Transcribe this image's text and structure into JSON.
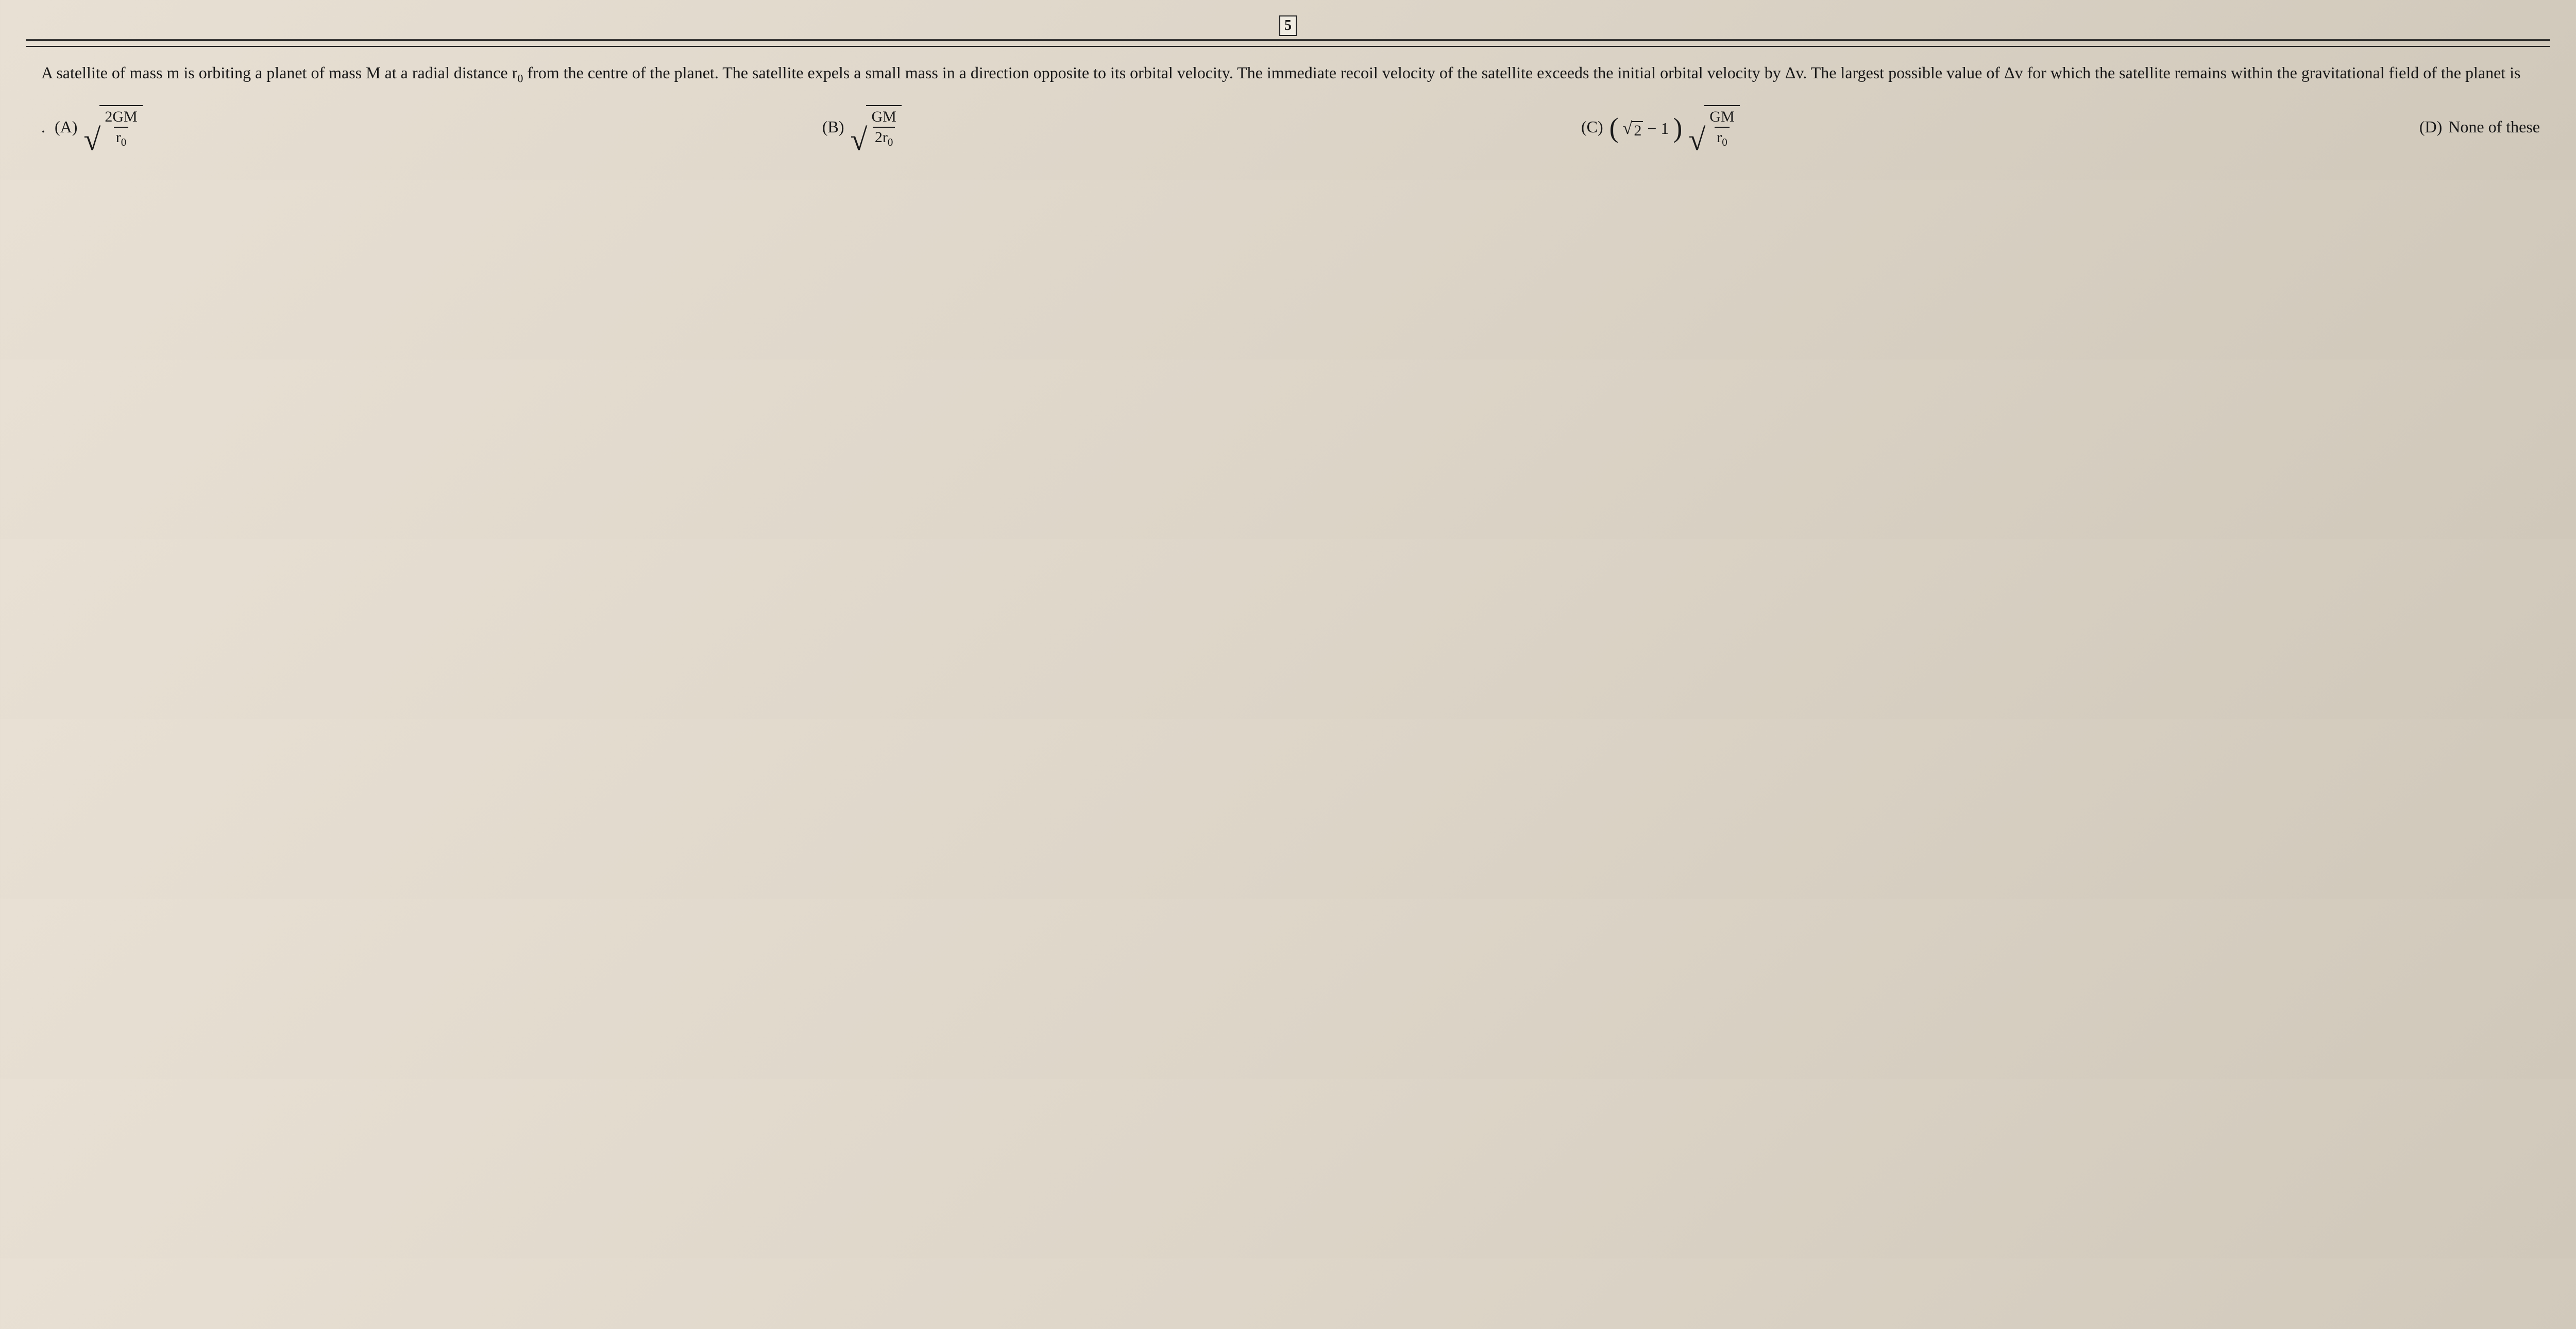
{
  "page": {
    "number": "5",
    "background_gradient": [
      "#e8e0d4",
      "#ddd5c8",
      "#d0c8ba"
    ],
    "text_color": "#1a1a1a",
    "font_family": "Georgia, Times New Roman, serif"
  },
  "question": {
    "text_parts": {
      "p1": "A satellite of mass m is orbiting a planet of mass M at a radial distance r",
      "sub1": "0",
      "p2": " from the centre of the planet. The satellite expels a small mass in a direction opposite to its orbital velocity. The immediate recoil velocity of the satellite exceeds the initial orbital velocity by Δv. The largest possible value of Δv for which the satellite remains within the gravitational field of the planet is"
    },
    "font_size": 32,
    "line_height": 1.9
  },
  "options": {
    "A": {
      "label": "(A)",
      "type": "sqrt-frac",
      "numerator": "2GM",
      "denominator_sym": "r",
      "denominator_sub": "0",
      "prefix_dot": "."
    },
    "B": {
      "label": "(B)",
      "type": "sqrt-frac",
      "numerator": "GM",
      "denominator_sym": "2r",
      "denominator_sub": "0"
    },
    "C": {
      "label": "(C)",
      "type": "paren-sqrt-frac",
      "inner_sqrt_val": "2",
      "inner_op": " − 1",
      "numerator": "GM",
      "denominator_sym": "r",
      "denominator_sub": "0"
    },
    "D": {
      "label": "(D)",
      "text": "None of these"
    },
    "font_size": 32
  },
  "styling": {
    "rule_color": "#222222",
    "box_border": "#222222",
    "radical_color": "#1a1a1a"
  }
}
